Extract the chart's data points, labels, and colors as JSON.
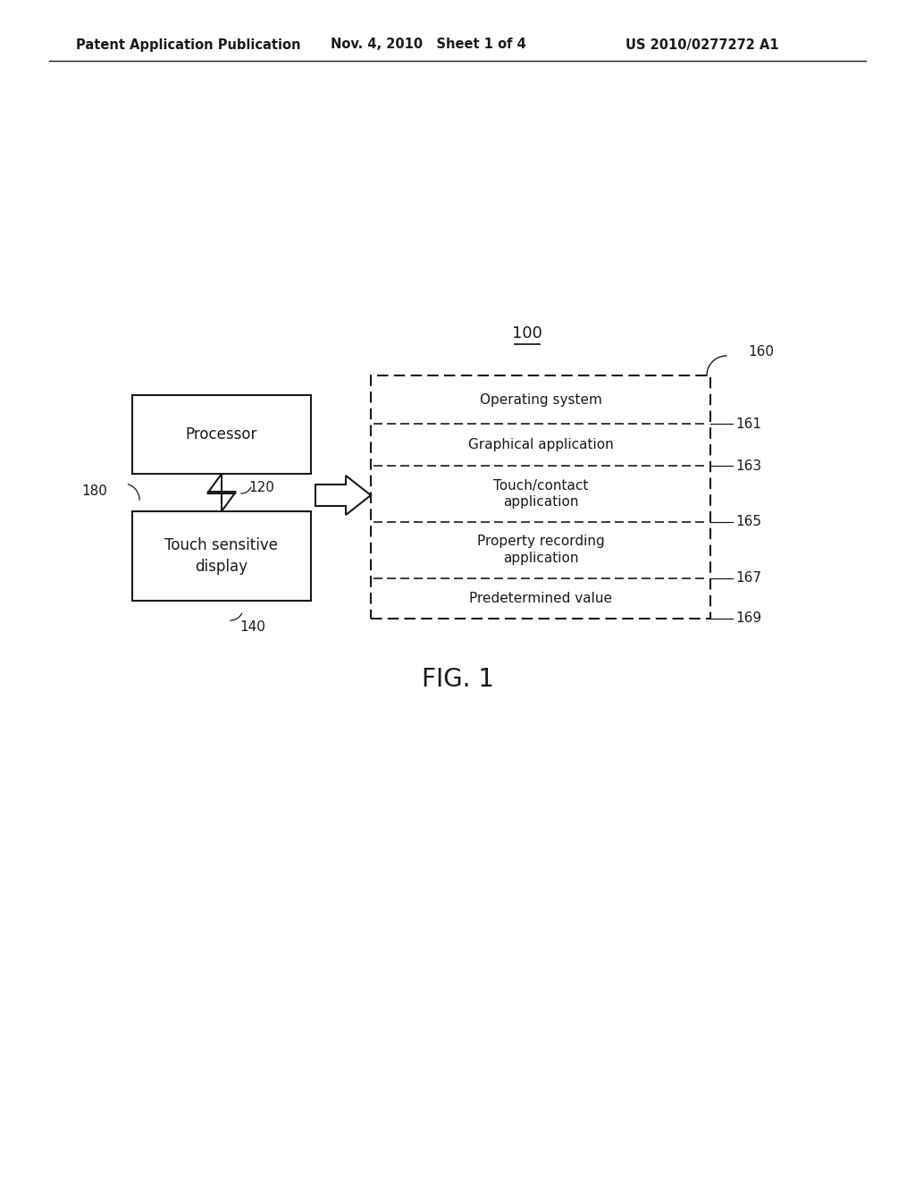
{
  "bg_color": "#ffffff",
  "header_left": "Patent Application Publication",
  "header_mid": "Nov. 4, 2010   Sheet 1 of 4",
  "header_right": "US 2010/0277272 A1",
  "fig_label": "FIG. 1",
  "processor_label": "Processor",
  "display_label": "Touch sensitive\ndisplay",
  "right_box_sections": [
    "Operating system",
    "Graphical application",
    "Touch/contact\napplication",
    "Property recording\napplication",
    "Predetermined value"
  ],
  "text_color": "#1a1a1a",
  "box_edge_color": "#1a1a1a",
  "font_size_header": 10.5,
  "font_size_box": 12,
  "font_size_label": 11,
  "font_size_fig": 20
}
